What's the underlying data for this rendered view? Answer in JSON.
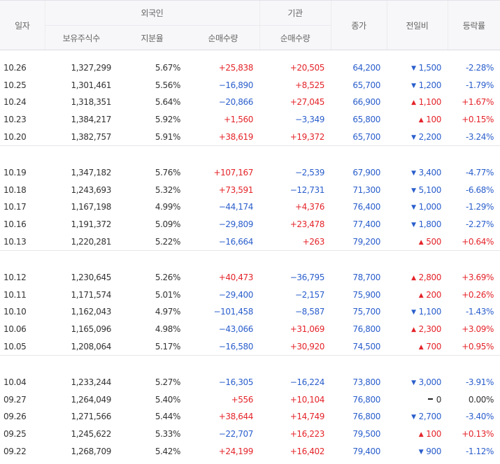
{
  "headers": {
    "date": "일자",
    "foreign": "외국인",
    "institution": "기관",
    "close": "종가",
    "change": "전일비",
    "rate": "등락률",
    "holdings": "보유주식수",
    "ratio": "지분율",
    "foreign_net": "순매수량",
    "inst_net": "순매수량"
  },
  "colors": {
    "up": "#e4242a",
    "down": "#2a5ecc",
    "neutral": "#333333"
  },
  "groups": [
    [
      {
        "date": "10.26",
        "holdings": "1,327,299",
        "ratio": "5.67%",
        "foreign_net": "+25,838",
        "inst_net": "+20,505",
        "close": "64,200",
        "change": "1,500",
        "dir": "down",
        "rate": "-2.28%"
      },
      {
        "date": "10.25",
        "holdings": "1,301,461",
        "ratio": "5.56%",
        "foreign_net": "−16,890",
        "inst_net": "+8,525",
        "close": "65,700",
        "change": "1,200",
        "dir": "down",
        "rate": "-1.79%"
      },
      {
        "date": "10.24",
        "holdings": "1,318,351",
        "ratio": "5.64%",
        "foreign_net": "−20,866",
        "inst_net": "+27,045",
        "close": "66,900",
        "change": "1,100",
        "dir": "up",
        "rate": "+1.67%"
      },
      {
        "date": "10.23",
        "holdings": "1,384,217",
        "ratio": "5.92%",
        "foreign_net": "+1,560",
        "inst_net": "−3,349",
        "close": "65,800",
        "change": "100",
        "dir": "up",
        "rate": "+0.15%"
      },
      {
        "date": "10.20",
        "holdings": "1,382,757",
        "ratio": "5.91%",
        "foreign_net": "+38,619",
        "inst_net": "+19,372",
        "close": "65,700",
        "change": "2,200",
        "dir": "down",
        "rate": "-3.24%"
      }
    ],
    [
      {
        "date": "10.19",
        "holdings": "1,347,182",
        "ratio": "5.76%",
        "foreign_net": "+107,167",
        "inst_net": "−2,539",
        "close": "67,900",
        "change": "3,400",
        "dir": "down",
        "rate": "-4.77%"
      },
      {
        "date": "10.18",
        "holdings": "1,243,693",
        "ratio": "5.32%",
        "foreign_net": "+73,591",
        "inst_net": "−12,731",
        "close": "71,300",
        "change": "5,100",
        "dir": "down",
        "rate": "-6.68%"
      },
      {
        "date": "10.17",
        "holdings": "1,167,198",
        "ratio": "4.99%",
        "foreign_net": "−44,174",
        "inst_net": "+4,376",
        "close": "76,400",
        "change": "1,000",
        "dir": "down",
        "rate": "-1.29%"
      },
      {
        "date": "10.16",
        "holdings": "1,191,372",
        "ratio": "5.09%",
        "foreign_net": "−29,809",
        "inst_net": "+23,478",
        "close": "77,400",
        "change": "1,800",
        "dir": "down",
        "rate": "-2.27%"
      },
      {
        "date": "10.13",
        "holdings": "1,220,281",
        "ratio": "5.22%",
        "foreign_net": "−16,664",
        "inst_net": "+263",
        "close": "79,200",
        "change": "500",
        "dir": "up",
        "rate": "+0.64%"
      }
    ],
    [
      {
        "date": "10.12",
        "holdings": "1,230,645",
        "ratio": "5.26%",
        "foreign_net": "+40,473",
        "inst_net": "−36,795",
        "close": "78,700",
        "change": "2,800",
        "dir": "up",
        "rate": "+3.69%"
      },
      {
        "date": "10.11",
        "holdings": "1,171,574",
        "ratio": "5.01%",
        "foreign_net": "−29,400",
        "inst_net": "−2,157",
        "close": "75,900",
        "change": "200",
        "dir": "up",
        "rate": "+0.26%"
      },
      {
        "date": "10.10",
        "holdings": "1,162,043",
        "ratio": "4.97%",
        "foreign_net": "−101,458",
        "inst_net": "−8,587",
        "close": "75,700",
        "change": "1,100",
        "dir": "down",
        "rate": "-1.43%"
      },
      {
        "date": "10.06",
        "holdings": "1,165,096",
        "ratio": "4.98%",
        "foreign_net": "−43,066",
        "inst_net": "+31,069",
        "close": "76,800",
        "change": "2,300",
        "dir": "up",
        "rate": "+3.09%"
      },
      {
        "date": "10.05",
        "holdings": "1,208,064",
        "ratio": "5.17%",
        "foreign_net": "−16,580",
        "inst_net": "+30,920",
        "close": "74,500",
        "change": "700",
        "dir": "up",
        "rate": "+0.95%"
      }
    ],
    [
      {
        "date": "10.04",
        "holdings": "1,233,244",
        "ratio": "5.27%",
        "foreign_net": "−16,305",
        "inst_net": "−16,224",
        "close": "73,800",
        "change": "3,000",
        "dir": "down",
        "rate": "-3.91%"
      },
      {
        "date": "09.27",
        "holdings": "1,264,049",
        "ratio": "5.40%",
        "foreign_net": "+556",
        "inst_net": "+10,104",
        "close": "76,800",
        "change": "0",
        "dir": "flat",
        "rate": "0.00%"
      },
      {
        "date": "09.26",
        "holdings": "1,271,566",
        "ratio": "5.44%",
        "foreign_net": "+38,644",
        "inst_net": "+14,749",
        "close": "76,800",
        "change": "2,700",
        "dir": "down",
        "rate": "-3.40%"
      },
      {
        "date": "09.25",
        "holdings": "1,245,622",
        "ratio": "5.33%",
        "foreign_net": "−22,707",
        "inst_net": "+16,223",
        "close": "79,500",
        "change": "100",
        "dir": "up",
        "rate": "+0.13%"
      },
      {
        "date": "09.22",
        "holdings": "1,268,709",
        "ratio": "5.42%",
        "foreign_net": "+24,199",
        "inst_net": "+16,402",
        "close": "79,400",
        "change": "900",
        "dir": "down",
        "rate": "-1.12%"
      }
    ]
  ]
}
